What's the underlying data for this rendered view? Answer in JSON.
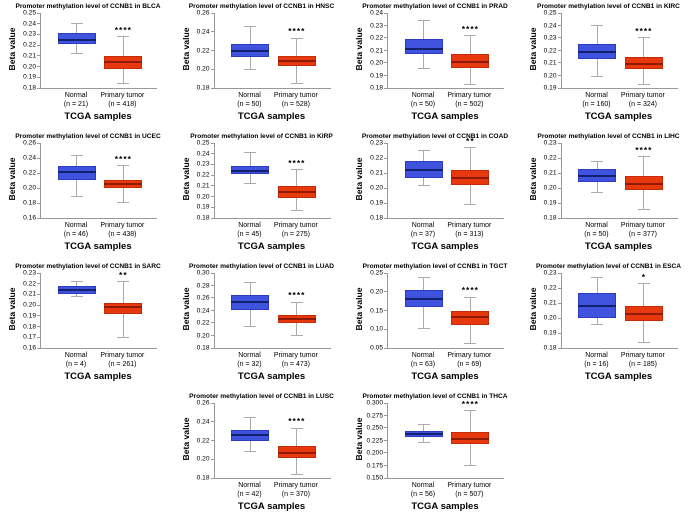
{
  "colors": {
    "normal_box": "#4053de",
    "normal_border": "#2b3cc0",
    "normal_median": "#13206b",
    "tumor_box": "#e8390e",
    "tumor_border": "#c22c06",
    "tumor_median": "#8f1a00",
    "whisker": "#ababab",
    "axis": "#999999"
  },
  "chart_data": [
    {
      "type": "bar",
      "cancer": "BLCA",
      "title": "Promoter methylation level of CCNB1 in BLCA",
      "ylabel": "Beta value",
      "xlabel": "TCGA samples",
      "ymin": 0.18,
      "ymax": 0.25,
      "yticks": [
        "0.25",
        "0.24",
        "0.23",
        "0.22",
        "0.21",
        "0.20",
        "0.19",
        "0.18"
      ],
      "significance": "****",
      "groups": [
        {
          "label": "Normal",
          "n": "(n = 21)",
          "color": "blue",
          "whisker_low": 0.212,
          "q1": 0.221,
          "median": 0.2245,
          "q3": 0.231,
          "whisker_high": 0.24
        },
        {
          "label": "Primary tumor",
          "n": "(n = 418)",
          "color": "red",
          "whisker_low": 0.184,
          "q1": 0.198,
          "median": 0.204,
          "q3": 0.21,
          "whisker_high": 0.228
        }
      ]
    },
    {
      "type": "bar",
      "cancer": "HNSC",
      "title": "Promoter methylation level of CCNB1 in HNSC",
      "ylabel": "Beta value",
      "xlabel": "TCGA samples",
      "ymin": 0.18,
      "ymax": 0.26,
      "yticks": [
        "0.26",
        "0.24",
        "0.22",
        "0.20",
        "0.18"
      ],
      "significance": "****",
      "groups": [
        {
          "label": "Normal",
          "n": "(n = 50)",
          "color": "blue",
          "whisker_low": 0.2,
          "q1": 0.213,
          "median": 0.219,
          "q3": 0.227,
          "whisker_high": 0.246
        },
        {
          "label": "Primary tumor",
          "n": "(n = 528)",
          "color": "red",
          "whisker_low": 0.185,
          "q1": 0.204,
          "median": 0.209,
          "q3": 0.214,
          "whisker_high": 0.233
        }
      ]
    },
    {
      "type": "bar",
      "cancer": "PRAD",
      "title": "Promoter methylation level of CCNB1 in PRAD",
      "ylabel": "Beta value",
      "xlabel": "TCGA samples",
      "ymin": 0.18,
      "ymax": 0.24,
      "yticks": [
        "0.24",
        "0.23",
        "0.22",
        "0.21",
        "0.20",
        "0.19",
        "0.18"
      ],
      "significance": "****",
      "groups": [
        {
          "label": "Normal",
          "n": "(n = 50)",
          "color": "blue",
          "whisker_low": 0.196,
          "q1": 0.207,
          "median": 0.211,
          "q3": 0.219,
          "whisker_high": 0.234
        },
        {
          "label": "Primary tumor",
          "n": "(n = 502)",
          "color": "red",
          "whisker_low": 0.183,
          "q1": 0.196,
          "median": 0.201,
          "q3": 0.207,
          "whisker_high": 0.222
        }
      ]
    },
    {
      "type": "bar",
      "cancer": "KIRC",
      "title": "Promoter methylation level of CCNB1 in KIRC",
      "ylabel": "Beta value",
      "xlabel": "TCGA samples",
      "ymin": 0.19,
      "ymax": 0.25,
      "yticks": [
        "0.25",
        "0.24",
        "0.23",
        "0.22",
        "0.21",
        "0.20",
        "0.19"
      ],
      "significance": "****",
      "groups": [
        {
          "label": "Normal",
          "n": "(n = 160)",
          "color": "blue",
          "whisker_low": 0.199,
          "q1": 0.213,
          "median": 0.219,
          "q3": 0.225,
          "whisker_high": 0.24
        },
        {
          "label": "Primary tumor",
          "n": "(n = 324)",
          "color": "red",
          "whisker_low": 0.193,
          "q1": 0.205,
          "median": 0.209,
          "q3": 0.215,
          "whisker_high": 0.23
        }
      ]
    },
    {
      "type": "bar",
      "cancer": "UCEC",
      "title": "Promoter methylation level of CCNB1 in UCEC",
      "ylabel": "Beta value",
      "xlabel": "TCGA samples",
      "ymin": 0.16,
      "ymax": 0.26,
      "yticks": [
        "0.26",
        "0.24",
        "0.22",
        "0.20",
        "0.18",
        "0.16"
      ],
      "significance": "****",
      "groups": [
        {
          "label": "Normal",
          "n": "(n = 46)",
          "color": "blue",
          "whisker_low": 0.189,
          "q1": 0.211,
          "median": 0.221,
          "q3": 0.23,
          "whisker_high": 0.244
        },
        {
          "label": "Primary tumor",
          "n": "(n = 438)",
          "color": "red",
          "whisker_low": 0.181,
          "q1": 0.2,
          "median": 0.205,
          "q3": 0.211,
          "whisker_high": 0.23
        }
      ]
    },
    {
      "type": "bar",
      "cancer": "KIRP",
      "title": "Promoter methylation level of CCNB1 in KIRP",
      "ylabel": "Beta value",
      "xlabel": "TCGA samples",
      "ymin": 0.18,
      "ymax": 0.25,
      "yticks": [
        "0.25",
        "0.24",
        "0.23",
        "0.22",
        "0.21",
        "0.20",
        "0.19",
        "0.18"
      ],
      "significance": "****",
      "groups": [
        {
          "label": "Normal",
          "n": "(n = 45)",
          "color": "blue",
          "whisker_low": 0.212,
          "q1": 0.221,
          "median": 0.224,
          "q3": 0.229,
          "whisker_high": 0.241
        },
        {
          "label": "Primary tumor",
          "n": "(n = 275)",
          "color": "red",
          "whisker_low": 0.187,
          "q1": 0.199,
          "median": 0.204,
          "q3": 0.21,
          "whisker_high": 0.225
        }
      ]
    },
    {
      "type": "bar",
      "cancer": "COAD",
      "title": "Promoter methylation level of CCNB1 in COAD",
      "ylabel": "Beta value",
      "xlabel": "TCGA samples",
      "ymin": 0.18,
      "ymax": 0.23,
      "yticks": [
        "0.23",
        "0.22",
        "0.21",
        "0.20",
        "0.19",
        "0.18"
      ],
      "significance": "**",
      "groups": [
        {
          "label": "Normal",
          "n": "(n = 37)",
          "color": "blue",
          "whisker_low": 0.202,
          "q1": 0.207,
          "median": 0.212,
          "q3": 0.218,
          "whisker_high": 0.225
        },
        {
          "label": "Primary tumor",
          "n": "(n = 313)",
          "color": "red",
          "whisker_low": 0.189,
          "q1": 0.202,
          "median": 0.207,
          "q3": 0.212,
          "whisker_high": 0.227
        }
      ]
    },
    {
      "type": "bar",
      "cancer": "LIHC",
      "title": "Promoter methylation level of CCNB1 in LIHC",
      "ylabel": "Beta value",
      "xlabel": "TCGA samples",
      "ymin": 0.18,
      "ymax": 0.23,
      "yticks": [
        "0.23",
        "0.22",
        "0.21",
        "0.20",
        "0.19",
        "0.18"
      ],
      "significance": "****",
      "groups": [
        {
          "label": "Normal",
          "n": "(n = 50)",
          "color": "blue",
          "whisker_low": 0.197,
          "q1": 0.204,
          "median": 0.208,
          "q3": 0.213,
          "whisker_high": 0.218
        },
        {
          "label": "Primary tumor",
          "n": "(n = 377)",
          "color": "red",
          "whisker_low": 0.186,
          "q1": 0.199,
          "median": 0.203,
          "q3": 0.208,
          "whisker_high": 0.221
        }
      ]
    },
    {
      "type": "bar",
      "cancer": "SARC",
      "title": "Promoter methylation level of CCNB1 in SARC",
      "ylabel": "Beta value",
      "xlabel": "TCGA samples",
      "ymin": 0.16,
      "ymax": 0.23,
      "yticks": [
        "0.23",
        "0.22",
        "0.21",
        "0.20",
        "0.19",
        "0.18",
        "0.17",
        "0.16"
      ],
      "significance": "**",
      "groups": [
        {
          "label": "Normal",
          "n": "(n = 4)",
          "color": "blue",
          "whisker_low": 0.208,
          "q1": 0.21,
          "median": 0.214,
          "q3": 0.218,
          "whisker_high": 0.222
        },
        {
          "label": "Primary tumor",
          "n": "(n = 261)",
          "color": "red",
          "whisker_low": 0.17,
          "q1": 0.192,
          "median": 0.198,
          "q3": 0.202,
          "whisker_high": 0.222
        }
      ]
    },
    {
      "type": "bar",
      "cancer": "LUAD",
      "title": "Promoter methylation level of CCNB1 in LUAD",
      "ylabel": "Beta value",
      "xlabel": "TCGA samples",
      "ymin": 0.18,
      "ymax": 0.3,
      "yticks": [
        "0.30",
        "0.28",
        "0.26",
        "0.24",
        "0.22",
        "0.20",
        "0.18"
      ],
      "significance": "****",
      "groups": [
        {
          "label": "Normal",
          "n": "(n = 32)",
          "color": "blue",
          "whisker_low": 0.215,
          "q1": 0.241,
          "median": 0.253,
          "q3": 0.265,
          "whisker_high": 0.285
        },
        {
          "label": "Primary tumor",
          "n": "(n = 473)",
          "color": "red",
          "whisker_low": 0.2,
          "q1": 0.22,
          "median": 0.226,
          "q3": 0.233,
          "whisker_high": 0.253
        }
      ]
    },
    {
      "type": "bar",
      "cancer": "TGCT",
      "title": "Promoter methylation level of CCNB1 in TGCT",
      "ylabel": "Beta value",
      "xlabel": "TCGA samples",
      "ymin": 0.05,
      "ymax": 0.25,
      "yticks": [
        "0.25",
        "0.20",
        "0.15",
        "0.10",
        "0.05"
      ],
      "significance": "****",
      "groups": [
        {
          "label": "Normal",
          "n": "(n = 63)",
          "color": "blue",
          "whisker_low": 0.101,
          "q1": 0.16,
          "median": 0.182,
          "q3": 0.205,
          "whisker_high": 0.237
        },
        {
          "label": "Primary tumor",
          "n": "(n = 69)",
          "color": "red",
          "whisker_low": 0.063,
          "q1": 0.112,
          "median": 0.134,
          "q3": 0.15,
          "whisker_high": 0.186
        }
      ]
    },
    {
      "type": "bar",
      "cancer": "ESCA",
      "title": "Promoter methylation level of CCNB1 in ESCA",
      "ylabel": "Beta value",
      "xlabel": "TCGA samples",
      "ymin": 0.18,
      "ymax": 0.23,
      "yticks": [
        "0.23",
        "0.22",
        "0.21",
        "0.20",
        "0.19",
        "0.18"
      ],
      "significance": "*",
      "groups": [
        {
          "label": "Normal",
          "n": "(n = 16)",
          "color": "blue",
          "whisker_low": 0.196,
          "q1": 0.2,
          "median": 0.208,
          "q3": 0.217,
          "whisker_high": 0.227
        },
        {
          "label": "Primary tumor",
          "n": "(n = 185)",
          "color": "red",
          "whisker_low": 0.184,
          "q1": 0.198,
          "median": 0.203,
          "q3": 0.208,
          "whisker_high": 0.223
        }
      ]
    },
    {
      "type": "bar",
      "cancer": "LUSC",
      "title": "Promoter methylation level of CCNB1 in LUSC",
      "ylabel": "Beta value",
      "xlabel": "TCGA samples",
      "ymin": 0.18,
      "ymax": 0.26,
      "yticks": [
        "0.26",
        "0.24",
        "0.22",
        "0.20",
        "0.18"
      ],
      "significance": "****",
      "groups": [
        {
          "label": "Normal",
          "n": "(n = 42)",
          "color": "blue",
          "whisker_low": 0.208,
          "q1": 0.22,
          "median": 0.226,
          "q3": 0.231,
          "whisker_high": 0.245
        },
        {
          "label": "Primary tumor",
          "n": "(n = 370)",
          "color": "red",
          "whisker_low": 0.184,
          "q1": 0.201,
          "median": 0.207,
          "q3": 0.214,
          "whisker_high": 0.233
        }
      ]
    },
    {
      "type": "bar",
      "cancer": "THCA",
      "title": "Promoter methylation level of CCNB1 in THCA",
      "ylabel": "Beta value",
      "xlabel": "TCGA samples",
      "ymin": 0.15,
      "ymax": 0.3,
      "yticks": [
        "0.300",
        "0.275",
        "0.250",
        "0.225",
        "0.200",
        "0.175",
        "0.150"
      ],
      "significance": "****",
      "groups": [
        {
          "label": "Normal",
          "n": "(n = 56)",
          "color": "blue",
          "whisker_low": 0.222,
          "q1": 0.233,
          "median": 0.238,
          "q3": 0.245,
          "whisker_high": 0.258
        },
        {
          "label": "Primary tumor",
          "n": "(n = 507)",
          "color": "red",
          "whisker_low": 0.176,
          "q1": 0.218,
          "median": 0.228,
          "q3": 0.243,
          "whisker_high": 0.285
        }
      ]
    }
  ]
}
